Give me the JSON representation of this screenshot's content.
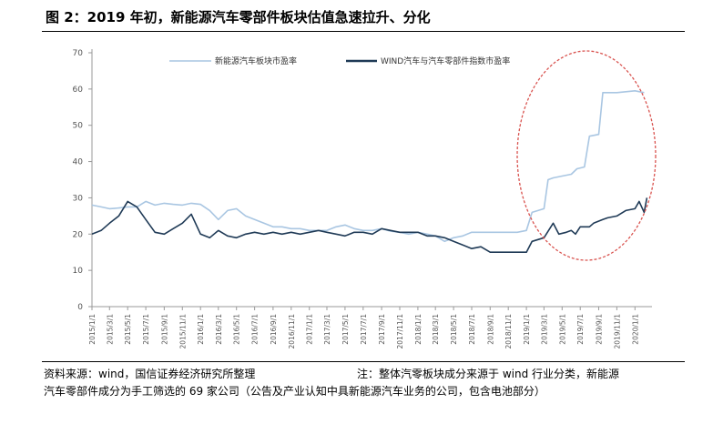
{
  "figure": {
    "title": "图 2：2019 年初，新能源汽车零部件板块估值急速拉升、分化",
    "source_note": "资料来源：wind，国信证券经济研究所整理",
    "note_line1": "注：整体汽零板块成分来源于 wind 行业分类，新能源",
    "note_line2": "汽车零部件成分为手工筛选的 69 家公司（公告及产业认知中具新能源汽车业务的公司，包含电池部分）"
  },
  "colors": {
    "series_nev": "#a9c6e2",
    "series_wind": "#1f3a56",
    "highlight_ellipse": "#d9534f",
    "axis": "#999999"
  },
  "chart_data": {
    "type": "line",
    "title": "",
    "xlabel": "",
    "ylabel": "",
    "ylim": [
      0,
      70
    ],
    "yticks": [
      0,
      10,
      20,
      30,
      40,
      50,
      60,
      70
    ],
    "grid": false,
    "legend_position": "top-center",
    "x_tick_labels": [
      "2015/1/1",
      "2015/3/1",
      "2015/5/1",
      "2015/7/1",
      "2015/9/1",
      "2015/11/1",
      "2016/1/1",
      "2016/3/1",
      "2016/5/1",
      "2016/7/1",
      "2016/9/1",
      "2016/11/1",
      "2017/1/1",
      "2017/3/1",
      "2017/5/1",
      "2017/7/1",
      "2017/9/1",
      "2017/11/1",
      "2018/1/1",
      "2018/3/1",
      "2018/5/1",
      "2018/7/1",
      "2018/9/1",
      "2018/11/1",
      "2019/1/1",
      "2019/3/1",
      "2019/5/1",
      "2019/7/1",
      "2019/9/1",
      "2019/11/1",
      "2020/1/1"
    ],
    "x_range": [
      "2015/1/1",
      "2020/2/15"
    ],
    "series": [
      {
        "name": "新能源汽车板块市盈率",
        "points": [
          [
            "2015/1/1",
            28
          ],
          [
            "2015/2/1",
            27.5
          ],
          [
            "2015/3/1",
            27
          ],
          [
            "2015/4/1",
            27.2
          ],
          [
            "2015/5/1",
            27.5
          ],
          [
            "2015/6/1",
            27.5
          ],
          [
            "2015/7/1",
            29
          ],
          [
            "2015/8/1",
            28
          ],
          [
            "2015/9/1",
            28.5
          ],
          [
            "2015/10/1",
            28.2
          ],
          [
            "2015/11/1",
            28
          ],
          [
            "2015/12/1",
            28.5
          ],
          [
            "2016/1/1",
            28.2
          ],
          [
            "2016/2/1",
            26.5
          ],
          [
            "2016/3/1",
            24
          ],
          [
            "2016/4/1",
            26.5
          ],
          [
            "2016/5/1",
            27
          ],
          [
            "2016/6/1",
            25
          ],
          [
            "2016/7/1",
            24
          ],
          [
            "2016/8/1",
            23
          ],
          [
            "2016/9/1",
            22
          ],
          [
            "2016/10/1",
            22
          ],
          [
            "2016/11/1",
            21.5
          ],
          [
            "2016/12/1",
            21.5
          ],
          [
            "2017/1/1",
            21
          ],
          [
            "2017/2/1",
            21
          ],
          [
            "2017/3/1",
            21
          ],
          [
            "2017/4/1",
            22
          ],
          [
            "2017/5/1",
            22.5
          ],
          [
            "2017/6/1",
            21.5
          ],
          [
            "2017/7/1",
            21
          ],
          [
            "2017/8/1",
            21
          ],
          [
            "2017/9/1",
            21.5
          ],
          [
            "2017/10/1",
            20.8
          ],
          [
            "2017/11/1",
            20.5
          ],
          [
            "2017/12/1",
            20
          ],
          [
            "2018/1/1",
            20.5
          ],
          [
            "2018/2/1",
            20
          ],
          [
            "2018/3/1",
            19.5
          ],
          [
            "2018/4/1",
            18
          ],
          [
            "2018/5/1",
            19
          ],
          [
            "2018/6/1",
            19.5
          ],
          [
            "2018/7/1",
            20.5
          ],
          [
            "2018/8/1",
            20.5
          ],
          [
            "2018/9/1",
            20.5
          ],
          [
            "2018/10/1",
            20.5
          ],
          [
            "2018/11/1",
            20.5
          ],
          [
            "2018/12/1",
            20.5
          ],
          [
            "2019/1/1",
            21
          ],
          [
            "2019/1/20",
            26
          ],
          [
            "2019/3/1",
            27
          ],
          [
            "2019/3/15",
            35
          ],
          [
            "2019/4/1",
            35.5
          ],
          [
            "2019/5/1",
            36
          ],
          [
            "2019/6/1",
            36.5
          ],
          [
            "2019/6/20",
            38
          ],
          [
            "2019/7/15",
            38.5
          ],
          [
            "2019/8/1",
            47
          ],
          [
            "2019/9/1",
            47.5
          ],
          [
            "2019/9/15",
            59
          ],
          [
            "2019/11/1",
            59
          ],
          [
            "2020/1/1",
            59.5
          ],
          [
            "2020/2/1",
            59
          ]
        ]
      },
      {
        "name": "WIND汽车与汽车零部件指数市盈率",
        "points": [
          [
            "2015/1/1",
            20
          ],
          [
            "2015/2/1",
            21
          ],
          [
            "2015/3/1",
            23
          ],
          [
            "2015/4/1",
            25
          ],
          [
            "2015/5/1",
            29
          ],
          [
            "2015/6/1",
            27.5
          ],
          [
            "2015/7/1",
            24
          ],
          [
            "2015/8/1",
            20.5
          ],
          [
            "2015/9/1",
            20
          ],
          [
            "2015/10/1",
            21.5
          ],
          [
            "2015/11/1",
            23
          ],
          [
            "2015/12/1",
            25.5
          ],
          [
            "2016/1/1",
            20
          ],
          [
            "2016/2/1",
            19
          ],
          [
            "2016/3/1",
            21
          ],
          [
            "2016/4/1",
            19.5
          ],
          [
            "2016/5/1",
            19
          ],
          [
            "2016/6/1",
            20
          ],
          [
            "2016/7/1",
            20.5
          ],
          [
            "2016/8/1",
            20
          ],
          [
            "2016/9/1",
            20.5
          ],
          [
            "2016/10/1",
            20
          ],
          [
            "2016/11/1",
            20.5
          ],
          [
            "2016/12/1",
            20
          ],
          [
            "2017/1/1",
            20.5
          ],
          [
            "2017/2/1",
            21
          ],
          [
            "2017/3/1",
            20.5
          ],
          [
            "2017/4/1",
            20
          ],
          [
            "2017/5/1",
            19.5
          ],
          [
            "2017/6/1",
            20.5
          ],
          [
            "2017/7/1",
            20.5
          ],
          [
            "2017/8/1",
            20
          ],
          [
            "2017/9/1",
            21.5
          ],
          [
            "2017/10/1",
            21
          ],
          [
            "2017/11/1",
            20.5
          ],
          [
            "2017/12/1",
            20.5
          ],
          [
            "2018/1/1",
            20.5
          ],
          [
            "2018/2/1",
            19.5
          ],
          [
            "2018/3/1",
            19.5
          ],
          [
            "2018/4/1",
            19
          ],
          [
            "2018/5/1",
            18
          ],
          [
            "2018/6/1",
            17
          ],
          [
            "2018/7/1",
            16
          ],
          [
            "2018/8/1",
            16.5
          ],
          [
            "2018/9/1",
            15
          ],
          [
            "2018/10/1",
            15
          ],
          [
            "2018/11/1",
            15
          ],
          [
            "2018/12/1",
            15
          ],
          [
            "2019/1/1",
            15
          ],
          [
            "2019/1/20",
            18
          ],
          [
            "2019/3/1",
            19
          ],
          [
            "2019/4/1",
            23
          ],
          [
            "2019/4/20",
            20
          ],
          [
            "2019/5/15",
            20.5
          ],
          [
            "2019/6/1",
            21
          ],
          [
            "2019/6/15",
            20
          ],
          [
            "2019/7/1",
            22
          ],
          [
            "2019/8/1",
            22
          ],
          [
            "2019/8/15",
            23
          ],
          [
            "2019/9/15",
            24
          ],
          [
            "2019/10/1",
            24.5
          ],
          [
            "2019/11/1",
            25
          ],
          [
            "2019/12/1",
            26.5
          ],
          [
            "2020/1/1",
            27
          ],
          [
            "2020/1/15",
            29
          ],
          [
            "2020/2/1",
            26
          ],
          [
            "2020/2/10",
            30
          ]
        ]
      }
    ]
  }
}
